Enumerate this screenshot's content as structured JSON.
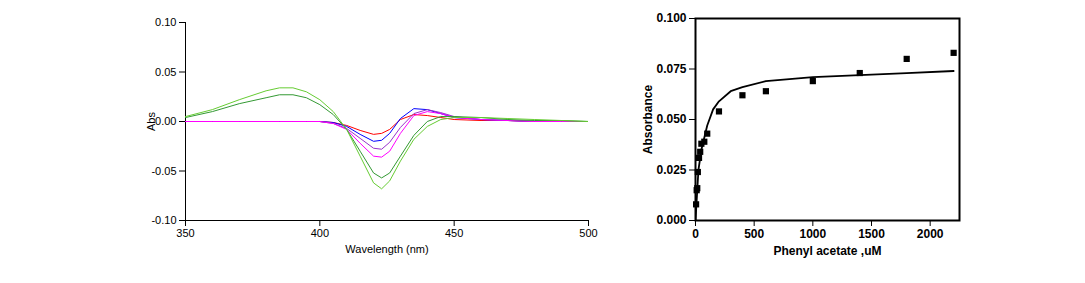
{
  "chart_data": [
    {
      "type": "line",
      "x_label": "Wavelength (nm)",
      "y_label": "Abs",
      "xlim": [
        350,
        500
      ],
      "xticks": [
        350,
        400,
        450,
        500
      ],
      "ylim": [
        -0.1,
        0.1
      ],
      "yticks": [
        {
          "value": -0.1,
          "label": "-0.10"
        },
        {
          "value": -0.05,
          "label": "-0.05"
        },
        {
          "value": 0,
          "label": "0.00"
        },
        {
          "value": 0.05,
          "label": "0.05"
        },
        {
          "value": 0.1,
          "label": "0.10"
        }
      ],
      "x": [
        350,
        360,
        370,
        380,
        385,
        390,
        395,
        400,
        405,
        410,
        415,
        420,
        423,
        426,
        430,
        435,
        440,
        445,
        450,
        460,
        470,
        480,
        490,
        500
      ],
      "series": [
        {
          "color": "#ff0000",
          "values": [
            0.0,
            0.0,
            0.0,
            0.0,
            0.0,
            0.0,
            0.0,
            0.0,
            -0.001,
            -0.004,
            -0.009,
            -0.013,
            -0.012,
            -0.008,
            0.002,
            0.007,
            0.006,
            0.004,
            0.002,
            0.001,
            0.001,
            0.0,
            0.0,
            0.0
          ]
        },
        {
          "color": "#0000ff",
          "values": [
            0.0,
            0.0,
            0.0,
            0.0,
            0.0,
            0.0,
            0.0,
            0.0,
            -0.001,
            -0.005,
            -0.013,
            -0.02,
            -0.019,
            -0.012,
            0.003,
            0.013,
            0.012,
            0.008,
            0.004,
            0.002,
            0.001,
            0.0,
            0.0,
            0.0
          ]
        },
        {
          "color": "#9933cc",
          "values": [
            0.0,
            0.0,
            0.0,
            0.0,
            0.0,
            0.0,
            0.0,
            0.0,
            -0.002,
            -0.007,
            -0.017,
            -0.027,
            -0.028,
            -0.021,
            -0.006,
            0.008,
            0.012,
            0.009,
            0.005,
            0.002,
            0.001,
            0.0,
            0.0,
            0.0
          ]
        },
        {
          "color": "#ff00ff",
          "values": [
            0.0,
            0.0,
            0.0,
            0.0,
            0.0,
            0.0,
            0.0,
            0.0,
            -0.002,
            -0.008,
            -0.022,
            -0.035,
            -0.036,
            -0.03,
            -0.012,
            0.006,
            0.01,
            0.008,
            0.004,
            0.002,
            0.001,
            0.0,
            0.0,
            0.0
          ]
        },
        {
          "color": "#339933",
          "values": [
            0.004,
            0.01,
            0.018,
            0.024,
            0.027,
            0.027,
            0.024,
            0.017,
            0.007,
            -0.008,
            -0.03,
            -0.052,
            -0.057,
            -0.052,
            -0.035,
            -0.014,
            0.0,
            0.005,
            0.005,
            0.004,
            0.002,
            0.001,
            0.001,
            0.0
          ]
        },
        {
          "color": "#66cc33",
          "values": [
            0.005,
            0.012,
            0.022,
            0.031,
            0.034,
            0.034,
            0.03,
            0.022,
            0.01,
            -0.008,
            -0.035,
            -0.062,
            -0.068,
            -0.06,
            -0.04,
            -0.018,
            -0.005,
            0.002,
            0.004,
            0.004,
            0.003,
            0.002,
            0.001,
            0.0
          ]
        }
      ]
    },
    {
      "type": "scatter",
      "x_label": "Phenyl acetate ,uM",
      "y_label": "Absorbance",
      "xlim": [
        0,
        2250
      ],
      "xticks": [
        0,
        500,
        1000,
        1500,
        2000
      ],
      "ylim": [
        0,
        0.1
      ],
      "yticks": [
        {
          "value": 0,
          "label": "0.000"
        },
        {
          "value": 0.025,
          "label": "0.025"
        },
        {
          "value": 0.05,
          "label": "0.050"
        },
        {
          "value": 0.075,
          "label": "0.075"
        },
        {
          "value": 0.1,
          "label": "0.100"
        }
      ],
      "series": [
        {
          "type": "scatter",
          "marker": "square",
          "color": "#000000",
          "x": [
            5,
            10,
            15,
            20,
            30,
            40,
            50,
            75,
            100,
            200,
            400,
            600,
            1000,
            1400,
            1800,
            2200
          ],
          "values": [
            0.008,
            0.015,
            0.016,
            0.024,
            0.031,
            0.034,
            0.038,
            0.039,
            0.043,
            0.054,
            0.062,
            0.064,
            0.069,
            0.073,
            0.08,
            0.083
          ]
        },
        {
          "type": "line",
          "color": "#000000",
          "x": [
            0,
            25,
            50,
            100,
            150,
            200,
            300,
            400,
            600,
            800,
            1000,
            1400,
            1800,
            2200
          ],
          "values": [
            0.0,
            0.025,
            0.035,
            0.047,
            0.055,
            0.059,
            0.064,
            0.066,
            0.069,
            0.07,
            0.071,
            0.072,
            0.073,
            0.074
          ]
        }
      ]
    }
  ]
}
